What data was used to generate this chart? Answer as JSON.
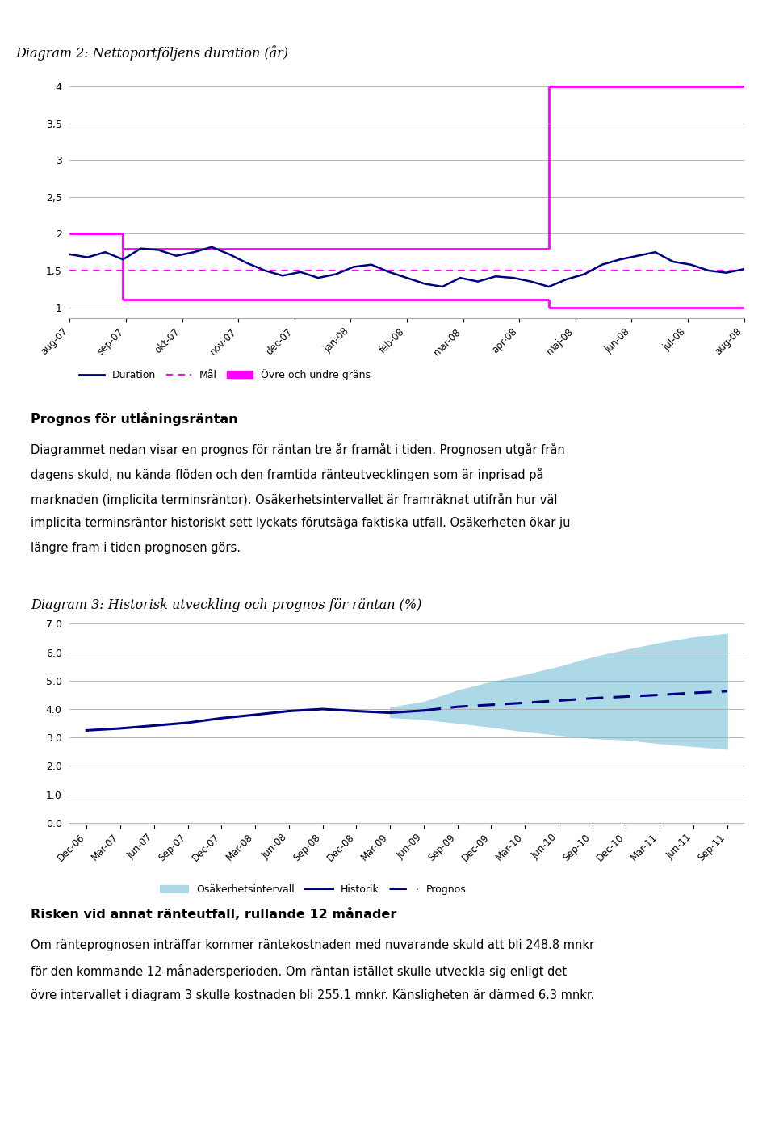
{
  "diagram2_title": "Diagram 2: Nettoportföljens duration (år)",
  "diagram2_yticks": [
    1,
    1.5,
    2,
    2.5,
    3,
    3.5,
    4
  ],
  "diagram2_ylim": [
    0.85,
    4.3
  ],
  "diagram2_xlabels": [
    "aug-07",
    "sep-07",
    "okt-07",
    "nov-07",
    "dec-07",
    "jan-08",
    "feb-08",
    "mar-08",
    "apr-08",
    "maj-08",
    "jun-08",
    "jul-08",
    "aug-08"
  ],
  "duration_data": [
    1.72,
    1.68,
    1.75,
    1.65,
    1.8,
    1.78,
    1.7,
    1.75,
    1.82,
    1.72,
    1.6,
    1.5,
    1.43,
    1.48,
    1.4,
    1.45,
    1.55,
    1.58,
    1.48,
    1.4,
    1.32,
    1.28,
    1.4,
    1.35,
    1.42,
    1.4,
    1.35,
    1.28,
    1.38,
    1.45,
    1.58,
    1.65,
    1.7,
    1.75,
    1.62,
    1.58,
    1.5,
    1.47,
    1.52
  ],
  "mal_data": [
    1.5,
    1.5,
    1.5,
    1.5,
    1.5,
    1.5,
    1.5,
    1.5,
    1.5,
    1.5,
    1.5,
    1.5,
    1.5,
    1.5,
    1.5,
    1.5,
    1.5,
    1.5,
    1.5,
    1.5,
    1.5,
    1.5,
    1.5,
    1.5,
    1.5,
    1.5,
    1.5,
    1.5,
    1.5,
    1.5,
    1.5,
    1.5,
    1.5,
    1.5,
    1.5,
    1.5,
    1.5,
    1.5,
    1.5
  ],
  "ovre_grans_segments": [
    {
      "x": [
        0,
        3
      ],
      "y": [
        2.0,
        2.0
      ]
    },
    {
      "x": [
        3,
        3
      ],
      "y": [
        2.0,
        1.8
      ]
    },
    {
      "x": [
        3,
        27
      ],
      "y": [
        1.8,
        1.8
      ]
    },
    {
      "x": [
        27,
        27
      ],
      "y": [
        1.8,
        4.0
      ]
    },
    {
      "x": [
        27,
        38
      ],
      "y": [
        4.0,
        4.0
      ]
    }
  ],
  "undre_grans_segments": [
    {
      "x": [
        0,
        3
      ],
      "y": [
        2.0,
        2.0
      ]
    },
    {
      "x": [
        3,
        3
      ],
      "y": [
        2.0,
        1.1
      ]
    },
    {
      "x": [
        3,
        27
      ],
      "y": [
        1.1,
        1.1
      ]
    },
    {
      "x": [
        27,
        27
      ],
      "y": [
        1.1,
        1.0
      ]
    },
    {
      "x": [
        27,
        38
      ],
      "y": [
        1.0,
        1.0
      ]
    }
  ],
  "duration_color": "#000080",
  "mal_color": "#FF00FF",
  "grans_color": "#FF00FF",
  "diagram2_legend": [
    "Duration",
    "Mål",
    "Övre och undre gräns"
  ],
  "text_block1_heading": "Prognos för utlåningsräntan",
  "text_block1_lines": [
    "Diagrammet nedan visar en prognos för räntan tre år framåt i tiden. Prognosen utgår från",
    "dagens skuld, nu kända flöden och den framtida ränteutvecklingen som är inprisad på",
    "marknaden (implicita terminsräntor). Osäkerhetsintervallet är framräknat utifrån hur väl",
    "implicita terminsräntor historiskt sett lyckats förutsäga faktiska utfall. Osäkerheten ökar ju",
    "längre fram i tiden prognosen görs."
  ],
  "diagram3_title": "Diagram 3: Historisk utveckling och prognos för räntan (%)",
  "diagram3_yticks": [
    0.0,
    1.0,
    2.0,
    3.0,
    4.0,
    5.0,
    6.0,
    7.0
  ],
  "diagram3_ylim": [
    -0.05,
    7.3
  ],
  "diagram3_xlabels": [
    "Dec-06",
    "Mar-07",
    "Jun-07",
    "Sep-07",
    "Dec-07",
    "Mar-08",
    "Jun-08",
    "Sep-08",
    "Dec-08",
    "Mar-09",
    "Jun-09",
    "Sep-09",
    "Dec-09",
    "Mar-10",
    "Jun-10",
    "Sep-10",
    "Dec-10",
    "Mar-11",
    "Jun-11",
    "Sep-11"
  ],
  "historik_x": [
    0,
    1,
    2,
    3,
    4,
    5,
    6,
    7,
    8,
    9,
    10
  ],
  "historik_y": [
    3.25,
    3.32,
    3.42,
    3.52,
    3.68,
    3.8,
    3.93,
    4.0,
    3.93,
    3.87,
    3.95
  ],
  "prognos_x": [
    10,
    11,
    12,
    13,
    14,
    15,
    16,
    17,
    18,
    19
  ],
  "prognos_y": [
    3.95,
    4.08,
    4.15,
    4.22,
    4.3,
    4.38,
    4.44,
    4.5,
    4.57,
    4.63
  ],
  "interval_x": [
    9,
    10,
    11,
    12,
    13,
    14,
    15,
    16,
    17,
    18,
    19
  ],
  "interval_upper": [
    4.05,
    4.25,
    4.65,
    4.95,
    5.2,
    5.48,
    5.82,
    6.08,
    6.32,
    6.52,
    6.65
  ],
  "interval_lower": [
    3.72,
    3.65,
    3.52,
    3.38,
    3.22,
    3.1,
    2.98,
    2.93,
    2.8,
    2.7,
    2.6
  ],
  "historik_color": "#000080",
  "prognos_color": "#000080",
  "interval_color": "#ADD8E6",
  "diagram3_legend": [
    "Osäkerhetsintervall",
    "Historik",
    "Prognos"
  ],
  "text_block2_heading": "Risken vid annat ränteutfall, rullande 12 månader",
  "text_block2_lines": [
    "Om ränteprognosen inträffar kommer räntekostnaden med nuvarande skuld att bli 248.8 mnkr",
    "för den kommande 12-månadersperioden. Om räntan istället skulle utveckla sig enligt det",
    "övre intervallet i diagram 3 skulle kostnaden bli 255.1 mnkr. Känsligheten är därmed 6.3 mnkr."
  ]
}
